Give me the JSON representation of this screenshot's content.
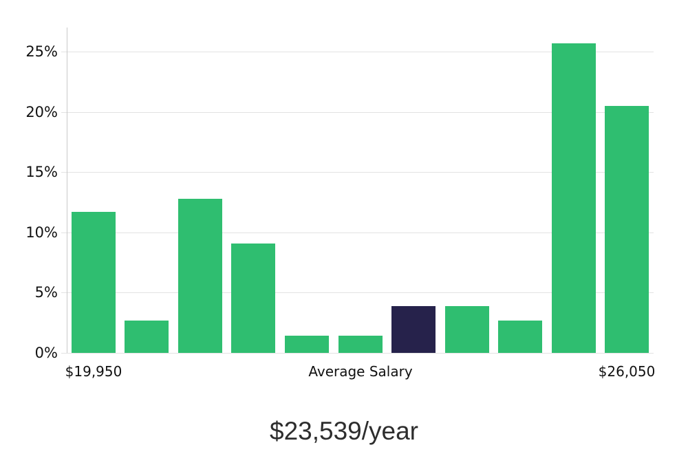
{
  "chart_data": {
    "type": "bar",
    "title": "$23,539/year",
    "values": [
      11.7,
      2.7,
      12.8,
      9.1,
      1.4,
      1.4,
      3.9,
      3.9,
      2.7,
      25.7,
      20.5
    ],
    "highlight_index": 6,
    "ylim": [
      0,
      27
    ],
    "ytick_values": [
      0,
      5,
      10,
      15,
      20,
      25
    ],
    "ytick_labels": [
      "0%",
      "5%",
      "10%",
      "15%",
      "20%",
      "25%"
    ],
    "xtick_labels": {
      "first": "$19,950",
      "center": "Average Salary",
      "last": "$26,050"
    },
    "grid": true,
    "legend": "none",
    "colors": {
      "bar": "#2fbe70",
      "highlight": "#26224b",
      "gridline": "#e2e2e2",
      "axis_line": "#c9c9c9",
      "tick_text": "#111111",
      "title_text": "#2d2d2d",
      "background": "#ffffff"
    }
  }
}
